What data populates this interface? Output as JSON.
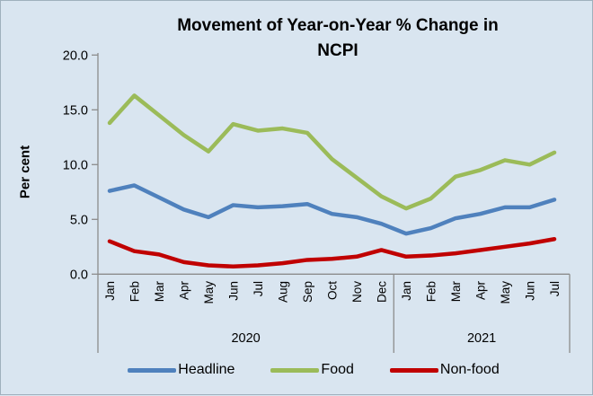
{
  "title": {
    "line1": "Movement of Year-on-Year % Change in",
    "line2": "NCPI"
  },
  "chart_data": {
    "type": "line",
    "title": "Movement of Year-on-Year % Change in NCPI",
    "ylabel": "Per cent",
    "xlabel": "",
    "ylim": [
      0,
      20
    ],
    "ytick_step": 5,
    "ytick_labels": [
      "0.0",
      "5.0",
      "10.0",
      "15.0",
      "20.0"
    ],
    "grid": false,
    "legend_position": "bottom",
    "x_groups": [
      {
        "label": "2020",
        "months": [
          "Jan",
          "Feb",
          "Mar",
          "Apr",
          "May",
          "Jun",
          "Jul",
          "Aug",
          "Sep",
          "Oct",
          "Nov",
          "Dec"
        ]
      },
      {
        "label": "2021",
        "months": [
          "Jan",
          "Feb",
          "Mar",
          "Apr",
          "May",
          "Jun",
          "Jul"
        ]
      }
    ],
    "series": [
      {
        "name": "Headline",
        "color": "#4f81bd",
        "values": [
          7.6,
          8.1,
          7.0,
          5.9,
          5.2,
          6.3,
          6.1,
          6.2,
          6.4,
          5.5,
          5.2,
          4.6,
          3.7,
          4.2,
          5.1,
          5.5,
          6.1,
          6.1,
          6.8
        ]
      },
      {
        "name": "Food",
        "color": "#9bbb59",
        "values": [
          13.8,
          16.3,
          14.5,
          12.7,
          11.2,
          13.7,
          13.1,
          13.3,
          12.9,
          10.5,
          8.8,
          7.1,
          6.0,
          6.9,
          8.9,
          9.5,
          10.4,
          10.0,
          11.1
        ]
      },
      {
        "name": "Non-food",
        "color": "#c00000",
        "values": [
          3.0,
          2.1,
          1.8,
          1.1,
          0.8,
          0.7,
          0.8,
          1.0,
          1.3,
          1.4,
          1.6,
          2.2,
          1.6,
          1.7,
          1.9,
          2.2,
          2.5,
          2.8,
          3.2
        ]
      }
    ]
  },
  "colors": {
    "background": "#d9e5f0",
    "axis": "#8c8c8c",
    "text": "#000000"
  }
}
